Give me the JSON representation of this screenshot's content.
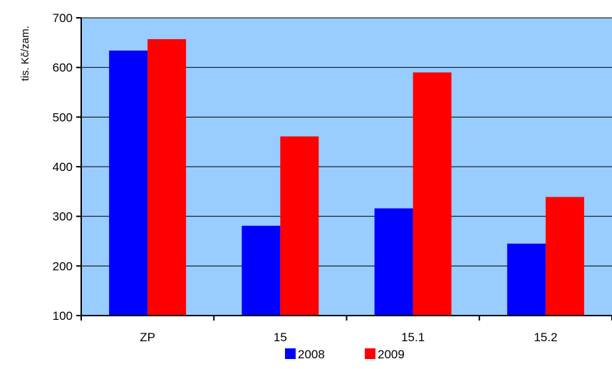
{
  "chart_data": {
    "type": "bar",
    "title": "",
    "xlabel": "",
    "ylabel": "tis. Kč/zam.",
    "ylim": [
      100,
      700
    ],
    "yticks": [
      100,
      200,
      300,
      400,
      500,
      600,
      700
    ],
    "categories": [
      "ZP",
      "15",
      "15.1",
      "15.2"
    ],
    "series": [
      {
        "name": "2008",
        "color": "#0000ff",
        "values": [
          634,
          281,
          316,
          245
        ]
      },
      {
        "name": "2009",
        "color": "#ff0000",
        "values": [
          657,
          461,
          590,
          339
        ]
      }
    ],
    "grid": true,
    "legend_position": "bottom",
    "plot_background": "#99ccff"
  }
}
